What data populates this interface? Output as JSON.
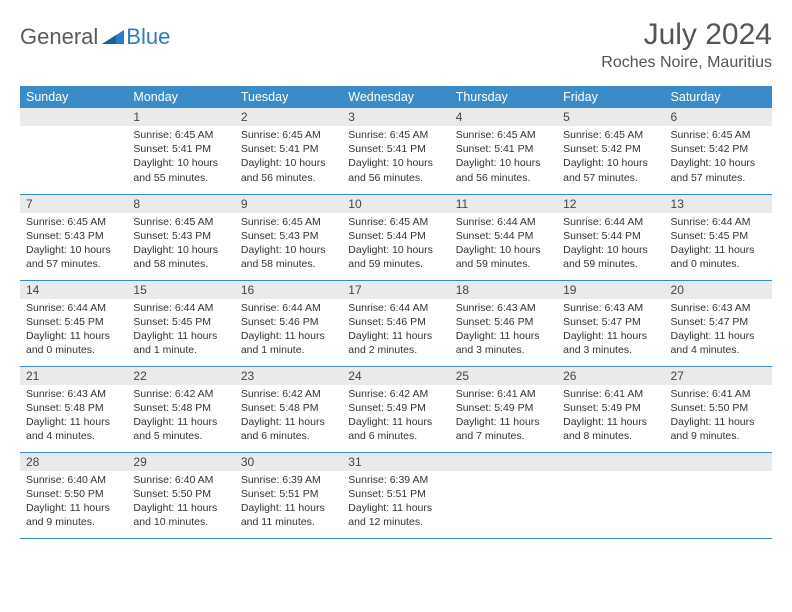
{
  "logo": {
    "general": "General",
    "blue": "Blue"
  },
  "title": "July 2024",
  "location": "Roches Noire, Mauritius",
  "colors": {
    "header_bg": "#3b8bc8",
    "header_text": "#ffffff",
    "daynum_bg": "#e9eaec",
    "row_border": "#3b8bc8",
    "body_text": "#333333",
    "title_text": "#555555",
    "logo_gray": "#5b5b5b",
    "logo_blue": "#2e7cc0",
    "background": "#ffffff"
  },
  "typography": {
    "title_fontsize": 30,
    "location_fontsize": 16,
    "weekday_fontsize": 12.5,
    "daynum_fontsize": 12,
    "body_fontsize": 10.5,
    "logo_fontsize": 22
  },
  "weekdays": [
    "Sunday",
    "Monday",
    "Tuesday",
    "Wednesday",
    "Thursday",
    "Friday",
    "Saturday"
  ],
  "weeks": [
    [
      null,
      {
        "num": "1",
        "sunrise": "Sunrise: 6:45 AM",
        "sunset": "Sunset: 5:41 PM",
        "daylight": "Daylight: 10 hours and 55 minutes."
      },
      {
        "num": "2",
        "sunrise": "Sunrise: 6:45 AM",
        "sunset": "Sunset: 5:41 PM",
        "daylight": "Daylight: 10 hours and 56 minutes."
      },
      {
        "num": "3",
        "sunrise": "Sunrise: 6:45 AM",
        "sunset": "Sunset: 5:41 PM",
        "daylight": "Daylight: 10 hours and 56 minutes."
      },
      {
        "num": "4",
        "sunrise": "Sunrise: 6:45 AM",
        "sunset": "Sunset: 5:41 PM",
        "daylight": "Daylight: 10 hours and 56 minutes."
      },
      {
        "num": "5",
        "sunrise": "Sunrise: 6:45 AM",
        "sunset": "Sunset: 5:42 PM",
        "daylight": "Daylight: 10 hours and 57 minutes."
      },
      {
        "num": "6",
        "sunrise": "Sunrise: 6:45 AM",
        "sunset": "Sunset: 5:42 PM",
        "daylight": "Daylight: 10 hours and 57 minutes."
      }
    ],
    [
      {
        "num": "7",
        "sunrise": "Sunrise: 6:45 AM",
        "sunset": "Sunset: 5:43 PM",
        "daylight": "Daylight: 10 hours and 57 minutes."
      },
      {
        "num": "8",
        "sunrise": "Sunrise: 6:45 AM",
        "sunset": "Sunset: 5:43 PM",
        "daylight": "Daylight: 10 hours and 58 minutes."
      },
      {
        "num": "9",
        "sunrise": "Sunrise: 6:45 AM",
        "sunset": "Sunset: 5:43 PM",
        "daylight": "Daylight: 10 hours and 58 minutes."
      },
      {
        "num": "10",
        "sunrise": "Sunrise: 6:45 AM",
        "sunset": "Sunset: 5:44 PM",
        "daylight": "Daylight: 10 hours and 59 minutes."
      },
      {
        "num": "11",
        "sunrise": "Sunrise: 6:44 AM",
        "sunset": "Sunset: 5:44 PM",
        "daylight": "Daylight: 10 hours and 59 minutes."
      },
      {
        "num": "12",
        "sunrise": "Sunrise: 6:44 AM",
        "sunset": "Sunset: 5:44 PM",
        "daylight": "Daylight: 10 hours and 59 minutes."
      },
      {
        "num": "13",
        "sunrise": "Sunrise: 6:44 AM",
        "sunset": "Sunset: 5:45 PM",
        "daylight": "Daylight: 11 hours and 0 minutes."
      }
    ],
    [
      {
        "num": "14",
        "sunrise": "Sunrise: 6:44 AM",
        "sunset": "Sunset: 5:45 PM",
        "daylight": "Daylight: 11 hours and 0 minutes."
      },
      {
        "num": "15",
        "sunrise": "Sunrise: 6:44 AM",
        "sunset": "Sunset: 5:45 PM",
        "daylight": "Daylight: 11 hours and 1 minute."
      },
      {
        "num": "16",
        "sunrise": "Sunrise: 6:44 AM",
        "sunset": "Sunset: 5:46 PM",
        "daylight": "Daylight: 11 hours and 1 minute."
      },
      {
        "num": "17",
        "sunrise": "Sunrise: 6:44 AM",
        "sunset": "Sunset: 5:46 PM",
        "daylight": "Daylight: 11 hours and 2 minutes."
      },
      {
        "num": "18",
        "sunrise": "Sunrise: 6:43 AM",
        "sunset": "Sunset: 5:46 PM",
        "daylight": "Daylight: 11 hours and 3 minutes."
      },
      {
        "num": "19",
        "sunrise": "Sunrise: 6:43 AM",
        "sunset": "Sunset: 5:47 PM",
        "daylight": "Daylight: 11 hours and 3 minutes."
      },
      {
        "num": "20",
        "sunrise": "Sunrise: 6:43 AM",
        "sunset": "Sunset: 5:47 PM",
        "daylight": "Daylight: 11 hours and 4 minutes."
      }
    ],
    [
      {
        "num": "21",
        "sunrise": "Sunrise: 6:43 AM",
        "sunset": "Sunset: 5:48 PM",
        "daylight": "Daylight: 11 hours and 4 minutes."
      },
      {
        "num": "22",
        "sunrise": "Sunrise: 6:42 AM",
        "sunset": "Sunset: 5:48 PM",
        "daylight": "Daylight: 11 hours and 5 minutes."
      },
      {
        "num": "23",
        "sunrise": "Sunrise: 6:42 AM",
        "sunset": "Sunset: 5:48 PM",
        "daylight": "Daylight: 11 hours and 6 minutes."
      },
      {
        "num": "24",
        "sunrise": "Sunrise: 6:42 AM",
        "sunset": "Sunset: 5:49 PM",
        "daylight": "Daylight: 11 hours and 6 minutes."
      },
      {
        "num": "25",
        "sunrise": "Sunrise: 6:41 AM",
        "sunset": "Sunset: 5:49 PM",
        "daylight": "Daylight: 11 hours and 7 minutes."
      },
      {
        "num": "26",
        "sunrise": "Sunrise: 6:41 AM",
        "sunset": "Sunset: 5:49 PM",
        "daylight": "Daylight: 11 hours and 8 minutes."
      },
      {
        "num": "27",
        "sunrise": "Sunrise: 6:41 AM",
        "sunset": "Sunset: 5:50 PM",
        "daylight": "Daylight: 11 hours and 9 minutes."
      }
    ],
    [
      {
        "num": "28",
        "sunrise": "Sunrise: 6:40 AM",
        "sunset": "Sunset: 5:50 PM",
        "daylight": "Daylight: 11 hours and 9 minutes."
      },
      {
        "num": "29",
        "sunrise": "Sunrise: 6:40 AM",
        "sunset": "Sunset: 5:50 PM",
        "daylight": "Daylight: 11 hours and 10 minutes."
      },
      {
        "num": "30",
        "sunrise": "Sunrise: 6:39 AM",
        "sunset": "Sunset: 5:51 PM",
        "daylight": "Daylight: 11 hours and 11 minutes."
      },
      {
        "num": "31",
        "sunrise": "Sunrise: 6:39 AM",
        "sunset": "Sunset: 5:51 PM",
        "daylight": "Daylight: 11 hours and 12 minutes."
      },
      null,
      null,
      null
    ]
  ]
}
